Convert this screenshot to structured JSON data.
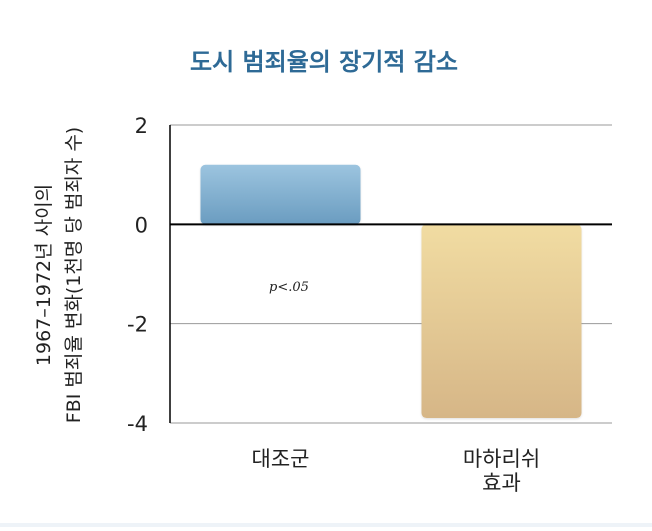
{
  "chart_data": {
    "type": "bar",
    "title": "도시 범죄율의 장기적 감소",
    "ylabel_line1": "1967–1972년 사이의",
    "ylabel_line2": "FBI 범죄율 변화(1천명 당 범죄자 수)",
    "categories": [
      [
        "대조군"
      ],
      [
        "마하리쉬",
        "효과"
      ]
    ],
    "values": [
      1.2,
      -3.9
    ],
    "ylim": [
      -4,
      2
    ],
    "yticks": [
      2,
      0,
      -2,
      -4
    ],
    "annotation": "p<.05",
    "grid": true,
    "colors": {
      "title": "#2e6a96",
      "bar1_top": "#9cc4df",
      "bar1_bottom": "#6a9cc0",
      "bar2_top": "#f1dca2",
      "bar2_bottom": "#d6b687",
      "axis": "#000000",
      "grid": "#999999",
      "text": "#222222"
    }
  }
}
